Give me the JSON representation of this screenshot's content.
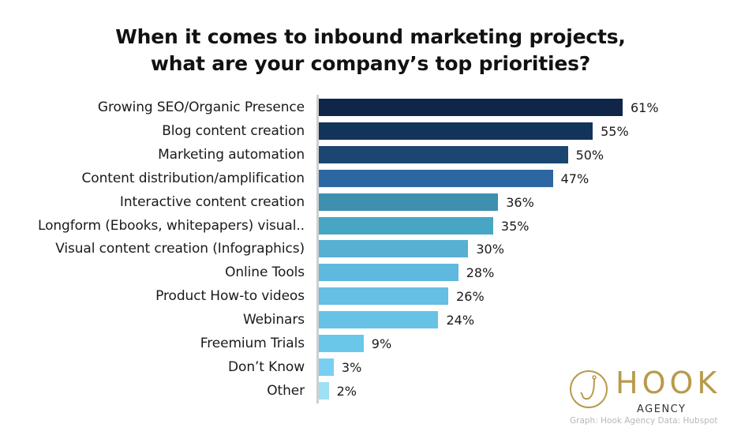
{
  "chart_data": {
    "type": "bar",
    "orientation": "horizontal",
    "title": "When it comes to inbound marketing projects, what are your company’s top priorities?",
    "title_lines": [
      "When it comes to inbound marketing projects,",
      "what are your company’s top priorities?"
    ],
    "xlabel": "",
    "ylabel": "",
    "grid": false,
    "legend": null,
    "xlim": [
      0,
      61
    ],
    "categories": [
      "Growing SEO/Organic Presence",
      "Blog content creation",
      "Marketing automation",
      "Content distribution/amplification",
      "Interactive content creation",
      "Longform (Ebooks, whitepapers) visual..",
      "Visual content creation (Infographics)",
      "Online Tools",
      "Product How-to videos",
      "Webinars",
      "Freemium Trials",
      "Don’t Know",
      "Other"
    ],
    "values": [
      61,
      55,
      50,
      47,
      36,
      35,
      30,
      28,
      26,
      24,
      9,
      3,
      2
    ],
    "value_labels": [
      "61%",
      "55%",
      "50%",
      "47%",
      "36%",
      "35%",
      "30%",
      "28%",
      "26%",
      "24%",
      "9%",
      "3%",
      "2%"
    ],
    "colors": [
      "#0f2649",
      "#12335a",
      "#1b4670",
      "#2d67a1",
      "#3f8fae",
      "#47a6c3",
      "#57b0d2",
      "#5fb9de",
      "#64bfe3",
      "#67c2e5",
      "#6ac7ea",
      "#79cff3",
      "#9fe0f6"
    ]
  },
  "branding": {
    "logo_word": "HOOK",
    "logo_sub": "AGENCY",
    "credit": "Graph: Hook Agency Data: Hubspot",
    "logo_color": "#b99a4c"
  }
}
